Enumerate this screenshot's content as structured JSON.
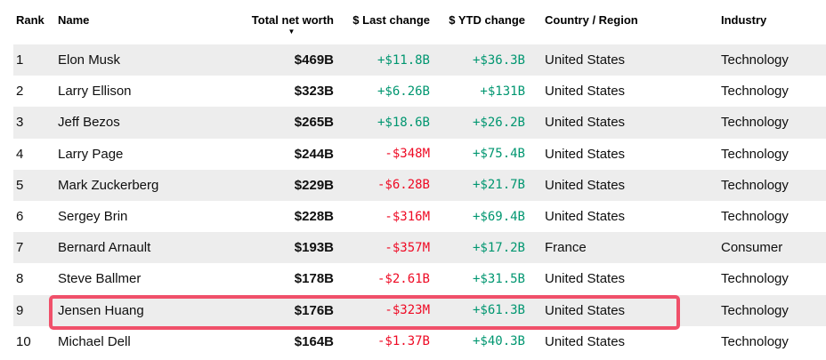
{
  "header": {
    "rank": "Rank",
    "name": "Name",
    "total_net_worth": "Total net worth",
    "last_change": "$ Last change",
    "ytd_change": "$ YTD change",
    "country": "Country / Region",
    "industry": "Industry",
    "sort_icon": "▼",
    "sorted_column": "Total net worth",
    "sort_direction": "descending"
  },
  "rows": [
    {
      "rank": "1",
      "name": "Elon Musk",
      "net_worth": "$469B",
      "last_change": "+$11.8B",
      "ytd_change": "+$36.3B",
      "country": "United States",
      "industry": "Technology",
      "highlighted": false
    },
    {
      "rank": "2",
      "name": "Larry Ellison",
      "net_worth": "$323B",
      "last_change": "+$6.26B",
      "ytd_change": "+$131B",
      "country": "United States",
      "industry": "Technology",
      "highlighted": false
    },
    {
      "rank": "3",
      "name": "Jeff Bezos",
      "net_worth": "$265B",
      "last_change": "+$18.6B",
      "ytd_change": "+$26.2B",
      "country": "United States",
      "industry": "Technology",
      "highlighted": false
    },
    {
      "rank": "4",
      "name": "Larry Page",
      "net_worth": "$244B",
      "last_change": "-$348M",
      "ytd_change": "+$75.4B",
      "country": "United States",
      "industry": "Technology",
      "highlighted": false
    },
    {
      "rank": "5",
      "name": "Mark Zuckerberg",
      "net_worth": "$229B",
      "last_change": "-$6.28B",
      "ytd_change": "+$21.7B",
      "country": "United States",
      "industry": "Technology",
      "highlighted": false
    },
    {
      "rank": "6",
      "name": "Sergey Brin",
      "net_worth": "$228B",
      "last_change": "-$316M",
      "ytd_change": "+$69.4B",
      "country": "United States",
      "industry": "Technology",
      "highlighted": false
    },
    {
      "rank": "7",
      "name": "Bernard Arnault",
      "net_worth": "$193B",
      "last_change": "-$357M",
      "ytd_change": "+$17.2B",
      "country": "France",
      "industry": "Consumer",
      "highlighted": false
    },
    {
      "rank": "8",
      "name": "Steve Ballmer",
      "net_worth": "$178B",
      "last_change": "-$2.61B",
      "ytd_change": "+$31.5B",
      "country": "United States",
      "industry": "Technology",
      "highlighted": false
    },
    {
      "rank": "9",
      "name": "Jensen Huang",
      "net_worth": "$176B",
      "last_change": "-$323M",
      "ytd_change": "+$61.3B",
      "country": "United States",
      "industry": "Technology",
      "highlighted": true
    },
    {
      "rank": "10",
      "name": "Michael Dell",
      "net_worth": "$164B",
      "last_change": "-$1.37B",
      "ytd_change": "+$40.3B",
      "country": "United States",
      "industry": "Technology",
      "highlighted": false
    }
  ],
  "colors": {
    "positive": "#009670",
    "negative": "#ee0a24",
    "stripe": "#ededed",
    "highlight_border": "#f0506a",
    "text": "#0f0f0f"
  }
}
